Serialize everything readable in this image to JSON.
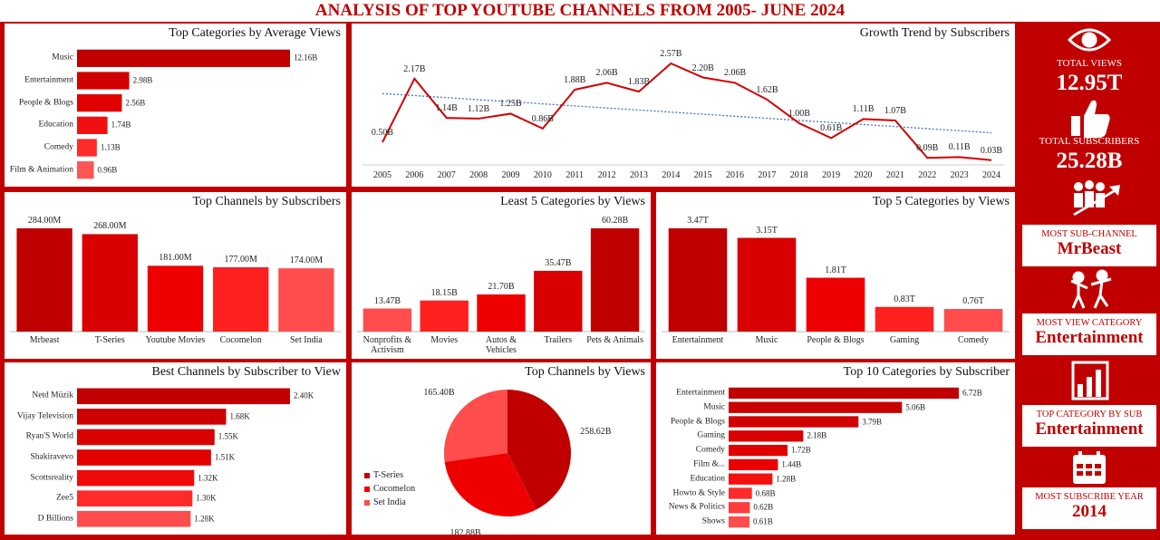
{
  "header": {
    "title": "ANALYSIS OF TOP YOUTUBE CHANNELS FROM 2005- JUNE 2024"
  },
  "kpis": [
    {
      "label": "TOTAL VIEWS",
      "value": "12.95T"
    },
    {
      "label": "TOTAL SUBSCRIBERS",
      "value": "25.28B"
    },
    {
      "label": "MOST SUB-CHANNEL",
      "value": "MrBeast"
    },
    {
      "label": "MOST VIEW CATEGORY",
      "value": "Entertainment"
    },
    {
      "label": "TOP CATEGORY BY SUB",
      "value": "Entertainment"
    },
    {
      "label": "MOST SUBSCRIBE YEAR",
      "value": "2014"
    }
  ],
  "chart_data": [
    {
      "type": "hbar",
      "title": "Top Categories by Average Views",
      "categories": [
        "Music",
        "Entertainment",
        "People & Blogs",
        "Education",
        "Comedy",
        "Film & Animation"
      ],
      "values": [
        12.16,
        2.98,
        2.56,
        1.74,
        1.13,
        0.96
      ],
      "value_labels": [
        "12.16B",
        "2.98B",
        "2.56B",
        "1.74B",
        "1.13B",
        "0.96B"
      ],
      "colors": [
        "#c00000",
        "#d00000",
        "#e00000",
        "#f01010",
        "#ff2a2a",
        "#ff5555"
      ]
    },
    {
      "type": "line",
      "title": "Growth Trend by Subscribers",
      "x": [
        2005,
        2006,
        2007,
        2008,
        2009,
        2010,
        2011,
        2012,
        2013,
        2014,
        2015,
        2016,
        2017,
        2018,
        2019,
        2020,
        2021,
        2022,
        2023,
        2024
      ],
      "values": [
        0.5,
        2.17,
        1.14,
        1.12,
        1.25,
        0.86,
        1.88,
        2.06,
        1.83,
        2.57,
        2.2,
        2.06,
        1.62,
        1.0,
        0.61,
        1.11,
        1.07,
        0.09,
        0.11,
        0.03
      ],
      "value_labels": [
        "0.50B",
        "2.17B",
        "1.14B",
        "1.12B",
        "1.25B",
        "0.86B",
        "1.88B",
        "2.06B",
        "1.83B",
        "2.57B",
        "2.20B",
        "2.06B",
        "1.62B",
        "1.00B",
        "0.61B",
        "1.11B",
        "1.07B",
        "0.09B",
        "0.11B",
        "0.03B"
      ],
      "color": "#d00000",
      "trendline": true
    },
    {
      "type": "bar",
      "title": "Top Channels by Subscribers",
      "categories": [
        "Mrbeast",
        "T-Series",
        "Youtube Movies",
        "Cocomelon",
        "Set India"
      ],
      "values": [
        284.0,
        268.0,
        181.0,
        177.0,
        174.0
      ],
      "value_labels": [
        "284.00M",
        "268.00M",
        "181.00M",
        "177.00M",
        "174.00M"
      ],
      "colors": [
        "#c00000",
        "#d80000",
        "#ee0000",
        "#ff2020",
        "#ff4c4c"
      ]
    },
    {
      "type": "bar",
      "title": "Least 5 Categories by Views",
      "categories": [
        "Nonprofits & Activism",
        "Movies",
        "Autos & Vehicles",
        "Trailers",
        "Pets & Animals"
      ],
      "values": [
        13.47,
        18.15,
        21.7,
        35.47,
        60.28
      ],
      "value_labels": [
        "13.47B",
        "18.15B",
        "21.70B",
        "35.47B",
        "60.28B"
      ],
      "colors": [
        "#ff4c4c",
        "#ff2020",
        "#ee0000",
        "#d80000",
        "#c00000"
      ]
    },
    {
      "type": "bar",
      "title": "Top 5 Categories by Views",
      "categories": [
        "Entertainment",
        "Music",
        "People & Blogs",
        "Gaming",
        "Comedy"
      ],
      "values": [
        3.47,
        3.15,
        1.81,
        0.83,
        0.76
      ],
      "value_labels": [
        "3.47T",
        "3.15T",
        "1.81T",
        "0.83T",
        "0.76T"
      ],
      "colors": [
        "#c00000",
        "#d80000",
        "#ee0000",
        "#ff2020",
        "#ff4c4c"
      ]
    },
    {
      "type": "hbar",
      "title": "Best Channels by Subscriber to View",
      "categories": [
        "Netd Müzik",
        "Vijay Television",
        "Ryan'S World",
        "Shakiravevo",
        "Scottsreality",
        "Zee5",
        "D Billions"
      ],
      "values": [
        2.4,
        1.68,
        1.55,
        1.51,
        1.32,
        1.3,
        1.28
      ],
      "value_labels": [
        "2.40K",
        "1.68K",
        "1.55K",
        "1.51K",
        "1.32K",
        "1.30K",
        "1.28K"
      ],
      "colors": [
        "#c00000",
        "#cc0000",
        "#d80000",
        "#e40000",
        "#f00a0a",
        "#ff2a2a",
        "#ff4c4c"
      ]
    },
    {
      "type": "pie",
      "title": "Top Channels by Views",
      "categories": [
        "T-Series",
        "Cocomelon",
        "Set India"
      ],
      "values": [
        258.62,
        182.88,
        165.4
      ],
      "value_labels": [
        "258.62B",
        "182.88B",
        "165.40B"
      ],
      "colors": [
        "#c00000",
        "#ee0000",
        "#ff4c4c"
      ]
    },
    {
      "type": "hbar",
      "title": "Top 10 Categories by Subscriber",
      "categories": [
        "Entertainment",
        "Music",
        "People & Blogs",
        "Gaming",
        "Comedy",
        "Film &...",
        "Education",
        "Howto & Style",
        "News & Politics",
        "Shows"
      ],
      "values": [
        6.72,
        5.06,
        3.79,
        2.18,
        1.72,
        1.44,
        1.28,
        0.68,
        0.62,
        0.61
      ],
      "value_labels": [
        "6.72B",
        "5.06B",
        "3.79B",
        "2.18B",
        "1.72B",
        "1.44B",
        "1.28B",
        "0.68B",
        "0.62B",
        "0.61B"
      ],
      "colors": [
        "#c00000",
        "#c80000",
        "#d00000",
        "#d80000",
        "#e00000",
        "#ea0000",
        "#f41010",
        "#ff2a2a",
        "#ff3c3c",
        "#ff4c4c"
      ]
    }
  ]
}
